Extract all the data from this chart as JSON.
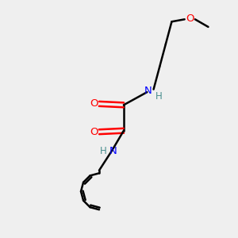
{
  "background_color": "#efefef",
  "bond_color": "#000000",
  "nitrogen_color": "#0000ff",
  "oxygen_color": "#ff0000",
  "nh_color": "#4a8f8f",
  "figsize": [
    3.0,
    3.0
  ],
  "dpi": 100,
  "xlim": [
    0,
    10
  ],
  "ylim": [
    0,
    10
  ]
}
